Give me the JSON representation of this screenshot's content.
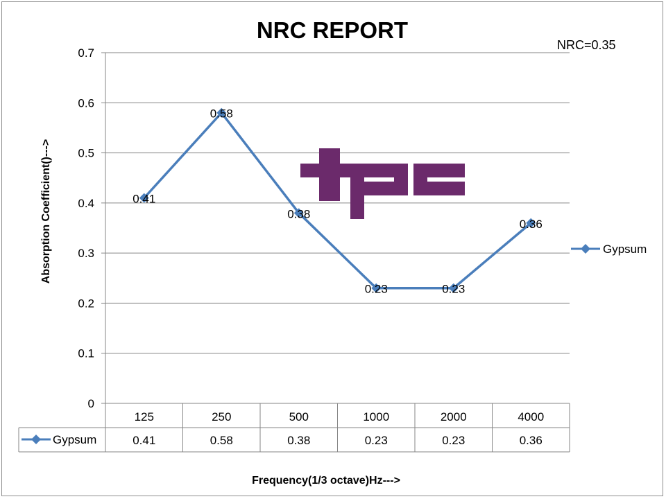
{
  "chart_data": {
    "type": "line",
    "title": "NRC REPORT",
    "annotation": "NRC=0.35",
    "xlabel": "Frequency(1/3 octave)Hz--->",
    "ylabel": "Absorption Coefficient()--->",
    "ylim": [
      0,
      0.7
    ],
    "yticks": [
      "0",
      "0.1",
      "0.2",
      "0.3",
      "0.4",
      "0.5",
      "0.6",
      "0.7"
    ],
    "categories": [
      "125",
      "250",
      "500",
      "1000",
      "2000",
      "4000"
    ],
    "series": [
      {
        "name": "Gypsum",
        "values": [
          0.41,
          0.58,
          0.38,
          0.23,
          0.23,
          0.36
        ],
        "labels": [
          "0.41",
          "0.58",
          "0.38",
          "0.23",
          "0.23",
          "0.36"
        ],
        "color": "#4a7ebb",
        "marker": "diamond"
      }
    ],
    "legend_position": "right",
    "data_table": true,
    "grid": true
  },
  "logo": {
    "text": "tpc",
    "color": "#6b2a6b"
  }
}
